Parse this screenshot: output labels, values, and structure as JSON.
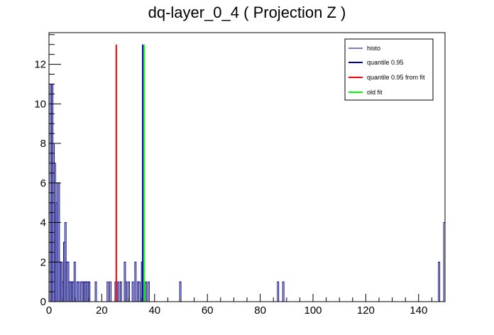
{
  "chart_data": {
    "type": "bar",
    "title": "dq-layer_0_4 ( Projection Z )",
    "xlabel": "",
    "ylabel": "",
    "xlim": [
      0,
      150
    ],
    "ylim": [
      0,
      13.6
    ],
    "grid": false,
    "legend_position": "top-right",
    "x_ticks": [
      0,
      20,
      40,
      60,
      80,
      100,
      120,
      140
    ],
    "y_ticks": [
      0,
      2,
      4,
      6,
      8,
      10,
      12
    ],
    "histogram": {
      "name": "histo",
      "color": "#000080",
      "bin_width": 0.5,
      "bins": [
        [
          0.0,
          5
        ],
        [
          0.5,
          11
        ],
        [
          1.0,
          11
        ],
        [
          1.5,
          8
        ],
        [
          2.0,
          7
        ],
        [
          2.5,
          5
        ],
        [
          3.0,
          6
        ],
        [
          3.5,
          6
        ],
        [
          4.0,
          2
        ],
        [
          4.5,
          2
        ],
        [
          5.0,
          1
        ],
        [
          5.5,
          3
        ],
        [
          6.0,
          4
        ],
        [
          6.5,
          2
        ],
        [
          7.0,
          2
        ],
        [
          7.5,
          1
        ],
        [
          8.0,
          1
        ],
        [
          8.5,
          1
        ],
        [
          9.0,
          1
        ],
        [
          9.5,
          2
        ],
        [
          10.5,
          1
        ],
        [
          11.0,
          1
        ],
        [
          12.0,
          1
        ],
        [
          12.5,
          1
        ],
        [
          13.0,
          1
        ],
        [
          13.5,
          1
        ],
        [
          14.0,
          1
        ],
        [
          14.5,
          1
        ],
        [
          15.0,
          1
        ],
        [
          17.5,
          1
        ],
        [
          22.0,
          1
        ],
        [
          23.0,
          1
        ],
        [
          25.0,
          1
        ],
        [
          26.0,
          1
        ],
        [
          27.0,
          1
        ],
        [
          28.5,
          2
        ],
        [
          29.0,
          1
        ],
        [
          30.0,
          1
        ],
        [
          31.5,
          1
        ],
        [
          32.5,
          2
        ],
        [
          33.5,
          1
        ],
        [
          34.0,
          1
        ],
        [
          35.0,
          2
        ],
        [
          36.5,
          1
        ],
        [
          37.5,
          1
        ],
        [
          49.5,
          1
        ],
        [
          86.5,
          1
        ],
        [
          88.5,
          1
        ],
        [
          147.5,
          2
        ],
        [
          149.5,
          4
        ]
      ]
    },
    "vertical_lines": [
      {
        "name": "quantile 0.95",
        "x": 35.5,
        "color": "#0000aa"
      },
      {
        "name": "quantile 0.95 from fit",
        "x": 25.5,
        "color": "#ff0000"
      },
      {
        "name": "old fit",
        "x": 36.0,
        "color": "#00ff00"
      }
    ],
    "line_top": 13.0
  },
  "legend": {
    "items": [
      {
        "label": "histo",
        "color": "#000080"
      },
      {
        "label": "quantile 0.95",
        "color": "#0000aa"
      },
      {
        "label": "quantile 0.95 from fit",
        "color": "#ff0000"
      },
      {
        "label": "old fit",
        "color": "#00ff00"
      }
    ]
  }
}
